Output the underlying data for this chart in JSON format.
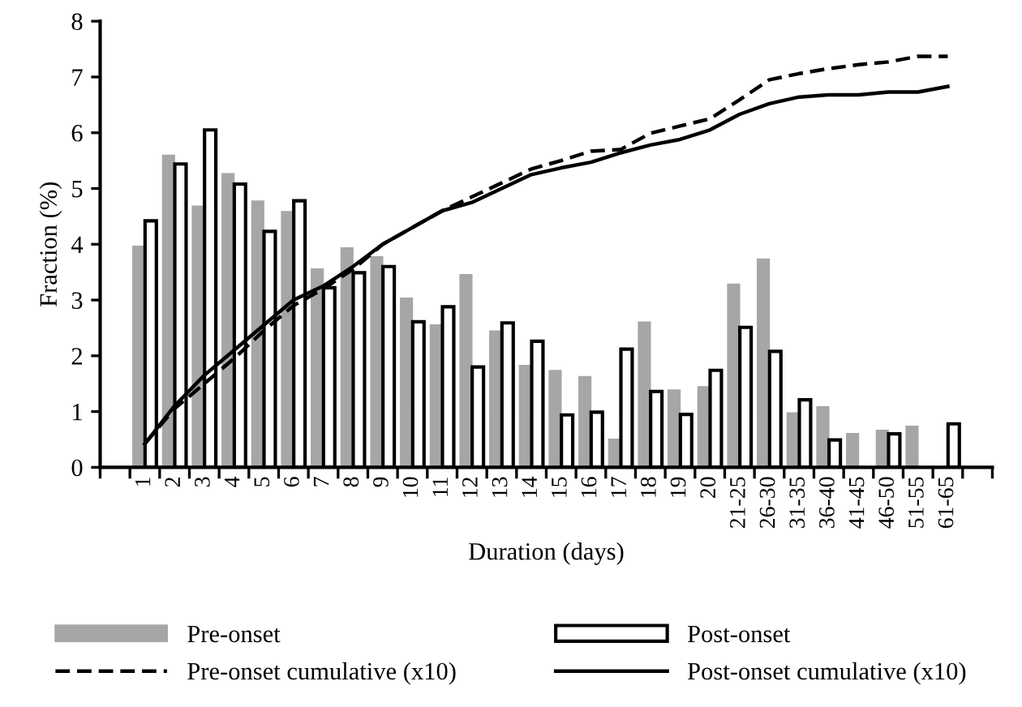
{
  "chart_data": {
    "type": "bar",
    "xlabel": "Duration (days)",
    "ylabel": "Fraction (%)",
    "categories": [
      null,
      "1",
      "2",
      "3",
      "4",
      "5",
      "6",
      "7",
      "8",
      "9",
      "10",
      "11",
      "12",
      "13",
      "14",
      "15",
      "16",
      "17",
      "18",
      "19",
      "20",
      "21-25",
      "26-30",
      "31-35",
      "36-40",
      "41-45",
      "46-50",
      "51-55",
      "61-65",
      null
    ],
    "series": [
      {
        "name": "Pre-onset",
        "color": "#a6a6a6",
        "values": [
          null,
          3.96,
          5.59,
          4.68,
          5.26,
          4.77,
          4.58,
          3.55,
          3.93,
          3.77,
          3.03,
          2.55,
          3.45,
          2.44,
          1.82,
          1.73,
          1.62,
          0.5,
          2.6,
          1.38,
          1.44,
          3.28,
          3.73,
          0.97,
          1.08,
          0.6,
          0.66,
          0.73,
          null,
          null
        ]
      },
      {
        "name": "Post-onset",
        "color": "#ffffff",
        "values": [
          null,
          4.42,
          5.44,
          6.05,
          5.08,
          4.23,
          4.78,
          3.22,
          3.49,
          3.6,
          2.61,
          2.88,
          1.8,
          2.59,
          2.26,
          0.94,
          0.99,
          2.12,
          1.36,
          0.95,
          1.74,
          2.51,
          2.08,
          1.21,
          0.49,
          null,
          0.6,
          null,
          0.78,
          null
        ]
      },
      {
        "name": "Pre-onset cumulative (x10)",
        "type": "line",
        "color": "#000000",
        "line_style": "dashed",
        "values": [
          null,
          0.42,
          1.05,
          1.5,
          1.95,
          2.45,
          2.9,
          3.2,
          3.55,
          4.0,
          4.3,
          4.6,
          4.85,
          5.1,
          5.35,
          5.5,
          5.67,
          5.7,
          5.99,
          6.12,
          6.25,
          6.59,
          6.95,
          7.06,
          7.15,
          7.22,
          7.27,
          7.37,
          7.37,
          null
        ]
      },
      {
        "name": "Post-onset cumulative (x10)",
        "type": "line",
        "color": "#000000",
        "line_style": "solid",
        "values": [
          null,
          0.42,
          1.1,
          1.65,
          2.1,
          2.55,
          3.0,
          3.25,
          3.6,
          4.0,
          4.3,
          4.6,
          4.75,
          5.0,
          5.25,
          5.37,
          5.47,
          5.64,
          5.78,
          5.88,
          6.05,
          6.33,
          6.52,
          6.64,
          6.68,
          6.68,
          6.73,
          6.73,
          6.83,
          null
        ]
      }
    ],
    "ylim": [
      0,
      8
    ],
    "yticks": [
      0,
      1,
      2,
      3,
      4,
      5,
      6,
      7,
      8
    ],
    "grid": false,
    "legend": "bottom",
    "marker": "none"
  }
}
